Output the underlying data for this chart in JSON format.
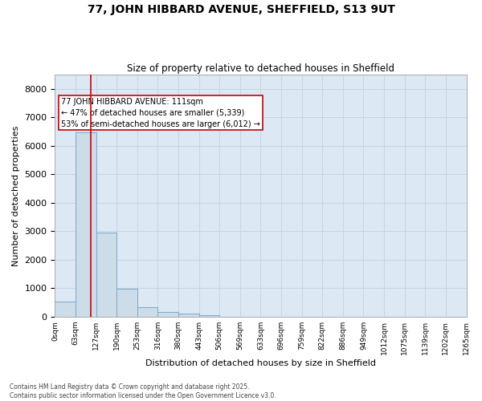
{
  "title1": "77, JOHN HIBBARD AVENUE, SHEFFIELD, S13 9UT",
  "title2": "Size of property relative to detached houses in Sheffield",
  "xlabel": "Distribution of detached houses by size in Sheffield",
  "ylabel": "Number of detached properties",
  "bar_color": "#ccdce8",
  "bar_edge_color": "#7aaac8",
  "grid_color": "#c8d0dc",
  "bg_color": "#dce8f4",
  "bin_labels": [
    "0sqm",
    "63sqm",
    "127sqm",
    "190sqm",
    "253sqm",
    "316sqm",
    "380sqm",
    "443sqm",
    "506sqm",
    "569sqm",
    "633sqm",
    "696sqm",
    "759sqm",
    "822sqm",
    "886sqm",
    "949sqm",
    "1012sqm",
    "1075sqm",
    "1139sqm",
    "1202sqm",
    "1265sqm"
  ],
  "bar_heights": [
    530,
    6480,
    2970,
    980,
    330,
    155,
    100,
    55,
    0,
    0,
    0,
    0,
    0,
    0,
    0,
    0,
    0,
    0,
    0,
    0
  ],
  "vline_x": 1.757,
  "vline_color": "#cc0000",
  "annotation_line1": "77 JOHN HIBBARD AVENUE: 111sqm",
  "annotation_line2": "← 47% of detached houses are smaller (5,339)",
  "annotation_line3": "53% of semi-detached houses are larger (6,012) →",
  "ylim": [
    0,
    8500
  ],
  "yticks": [
    0,
    1000,
    2000,
    3000,
    4000,
    5000,
    6000,
    7000,
    8000
  ],
  "footer1": "Contains HM Land Registry data © Crown copyright and database right 2025.",
  "footer2": "Contains public sector information licensed under the Open Government Licence v3.0."
}
